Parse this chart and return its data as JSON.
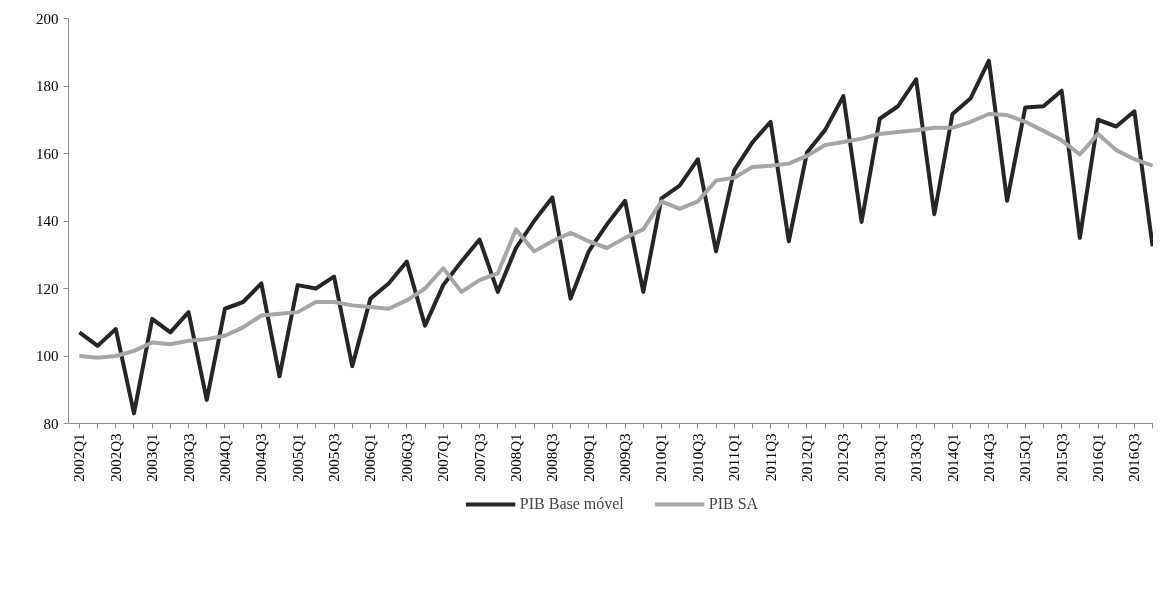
{
  "chart_data": {
    "type": "line",
    "categories": [
      "2002Q1",
      null,
      "2002Q3",
      null,
      "2003Q1",
      null,
      "2003Q3",
      null,
      "2004Q1",
      null,
      "2004Q3",
      null,
      "2005Q1",
      null,
      "2005Q3",
      null,
      "2006Q1",
      null,
      "2006Q3",
      null,
      "2007Q1",
      null,
      "2007Q3",
      null,
      "2008Q1",
      null,
      "2008Q3",
      null,
      "2009Q1",
      null,
      "2009Q3",
      null,
      "2010Q1",
      null,
      "2010Q3",
      null,
      "2011Q1",
      null,
      "2011Q3",
      null,
      "2012Q1",
      null,
      "2012Q3",
      null,
      "2013Q1",
      null,
      "2013Q3",
      null,
      "2014Q1",
      null,
      "2014Q3",
      null,
      "2015Q1",
      null,
      "2015Q3",
      null,
      "2016Q1",
      null,
      "2016Q3",
      null
    ],
    "series": [
      {
        "name": "PIB Base móvel",
        "color": "#262626",
        "values": [
          107,
          103,
          108,
          83,
          111,
          107,
          113,
          87,
          114,
          116,
          121.5,
          94,
          121,
          120,
          123.5,
          97,
          117,
          121.5,
          128,
          109,
          121,
          128,
          134.5,
          119,
          132,
          140,
          147,
          117,
          131,
          139,
          146,
          119,
          146.7,
          150.5,
          158.3,
          131,
          155,
          163.3,
          169.4,
          134,
          160.3,
          167,
          177,
          139.7,
          170.3,
          174,
          182,
          142,
          171.7,
          176.4,
          187.5,
          146,
          173.6,
          174,
          178.6,
          135,
          170,
          168,
          172.5,
          132.5
        ]
      },
      {
        "name": "PIB SA",
        "color": "#a6a6a6",
        "values": [
          100,
          99.5,
          100,
          101.5,
          104,
          103.5,
          104.5,
          105,
          106,
          108.5,
          112,
          112.5,
          113,
          116,
          116,
          115,
          114.5,
          114,
          116.5,
          120,
          126,
          119,
          122.5,
          124.5,
          137.5,
          131,
          134,
          136.5,
          134,
          132,
          135,
          137.5,
          145.8,
          143.6,
          145.8,
          152,
          152.8,
          156,
          156.4,
          157,
          159.3,
          162.5,
          163.4,
          164.4,
          165.8,
          166.4,
          166.9,
          167.6,
          167.6,
          169.4,
          171.7,
          171.4,
          169.4,
          166.7,
          163.9,
          159.7,
          165.8,
          161,
          158.3,
          156.4
        ]
      }
    ],
    "ylim": [
      80,
      200
    ],
    "yticks": [
      80,
      100,
      120,
      140,
      160,
      180,
      200
    ],
    "grid": false,
    "legend": "bottom",
    "marker": "none",
    "line_style": "solid"
  }
}
